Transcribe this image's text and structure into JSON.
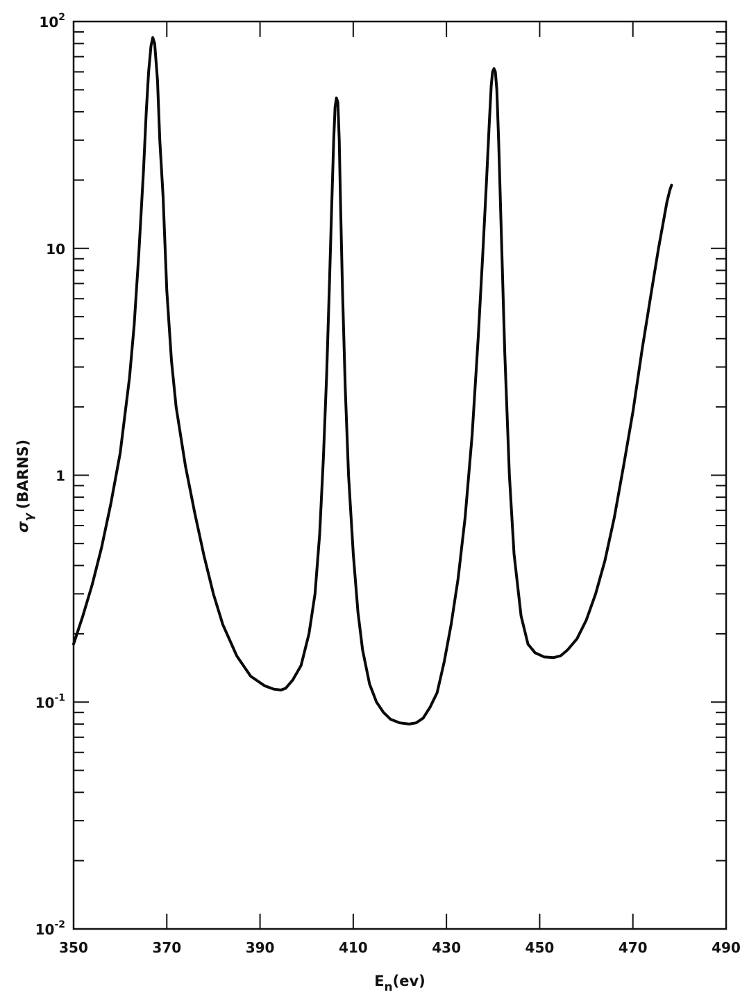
{
  "chart_data": {
    "type": "line",
    "title": "",
    "xlabel": {
      "main": "E",
      "sub": "n",
      "unit": "(ev)"
    },
    "ylabel": {
      "symbol": "σ",
      "sub": "γ",
      "unit": "(BARNS)"
    },
    "xlim": [
      350,
      490
    ],
    "ylim": [
      0.01,
      100
    ],
    "yscale": "log",
    "grid": false,
    "x_ticks": [
      "350",
      "370",
      "390",
      "410",
      "430",
      "450",
      "470",
      "490"
    ],
    "y_ticks": [
      {
        "base": "10",
        "exp": "-2"
      },
      {
        "base": "10",
        "exp": "-1"
      },
      {
        "base": "1",
        "exp": ""
      },
      {
        "base": "10",
        "exp": ""
      },
      {
        "base": "10",
        "exp": "2"
      }
    ],
    "series": [
      {
        "x": [
          350,
          352,
          354,
          356,
          358,
          360,
          362,
          363,
          364,
          365,
          365.6,
          366.1,
          366.6,
          367.0,
          367.4,
          368.0,
          368.5,
          369.2,
          370,
          371,
          372,
          374,
          376,
          378,
          380,
          382,
          385,
          388,
          391,
          393,
          394.5,
          395.5,
          397,
          398.8,
          400.5,
          401.8,
          402.8,
          403.6,
          404.3,
          404.9,
          405.4,
          405.8,
          406.1,
          406.4,
          406.7,
          407.0,
          407.3,
          407.7,
          408.3,
          409,
          410,
          411,
          412,
          413.5,
          415,
          416.5,
          418,
          420,
          422,
          423.5,
          425,
          426.5,
          428,
          429.5,
          431,
          432.5,
          434,
          435.5,
          436.8,
          437.8,
          438.6,
          439.2,
          439.6,
          439.9,
          440.2,
          440.5,
          440.8,
          441.2,
          441.8,
          442.5,
          443.5,
          444.5,
          446,
          447.5,
          449,
          451,
          453,
          454.5,
          456,
          458,
          460,
          462,
          464,
          466,
          468,
          470,
          472,
          474,
          475.5,
          476.5,
          477.3,
          477.9,
          478.3
        ],
        "y": [
          0.18,
          0.24,
          0.33,
          0.48,
          0.75,
          1.25,
          2.7,
          4.6,
          9.5,
          22,
          40,
          60,
          78,
          85,
          80,
          55,
          30,
          17,
          6.5,
          3.2,
          2.0,
          1.1,
          0.68,
          0.44,
          0.3,
          0.22,
          0.16,
          0.13,
          0.118,
          0.114,
          0.113,
          0.115,
          0.125,
          0.145,
          0.2,
          0.3,
          0.55,
          1.2,
          2.8,
          7.0,
          16,
          30,
          42,
          46,
          44,
          30,
          15,
          6.5,
          2.4,
          1.0,
          0.45,
          0.25,
          0.17,
          0.12,
          0.1,
          0.09,
          0.084,
          0.081,
          0.08,
          0.081,
          0.085,
          0.095,
          0.11,
          0.15,
          0.22,
          0.35,
          0.65,
          1.5,
          4.0,
          9.5,
          20,
          36,
          52,
          60,
          62,
          60,
          50,
          30,
          11,
          3.5,
          1.0,
          0.45,
          0.24,
          0.18,
          0.165,
          0.158,
          0.157,
          0.16,
          0.17,
          0.19,
          0.23,
          0.3,
          0.42,
          0.65,
          1.1,
          1.9,
          3.6,
          6.5,
          10,
          13,
          16,
          18,
          19
        ]
      }
    ]
  }
}
